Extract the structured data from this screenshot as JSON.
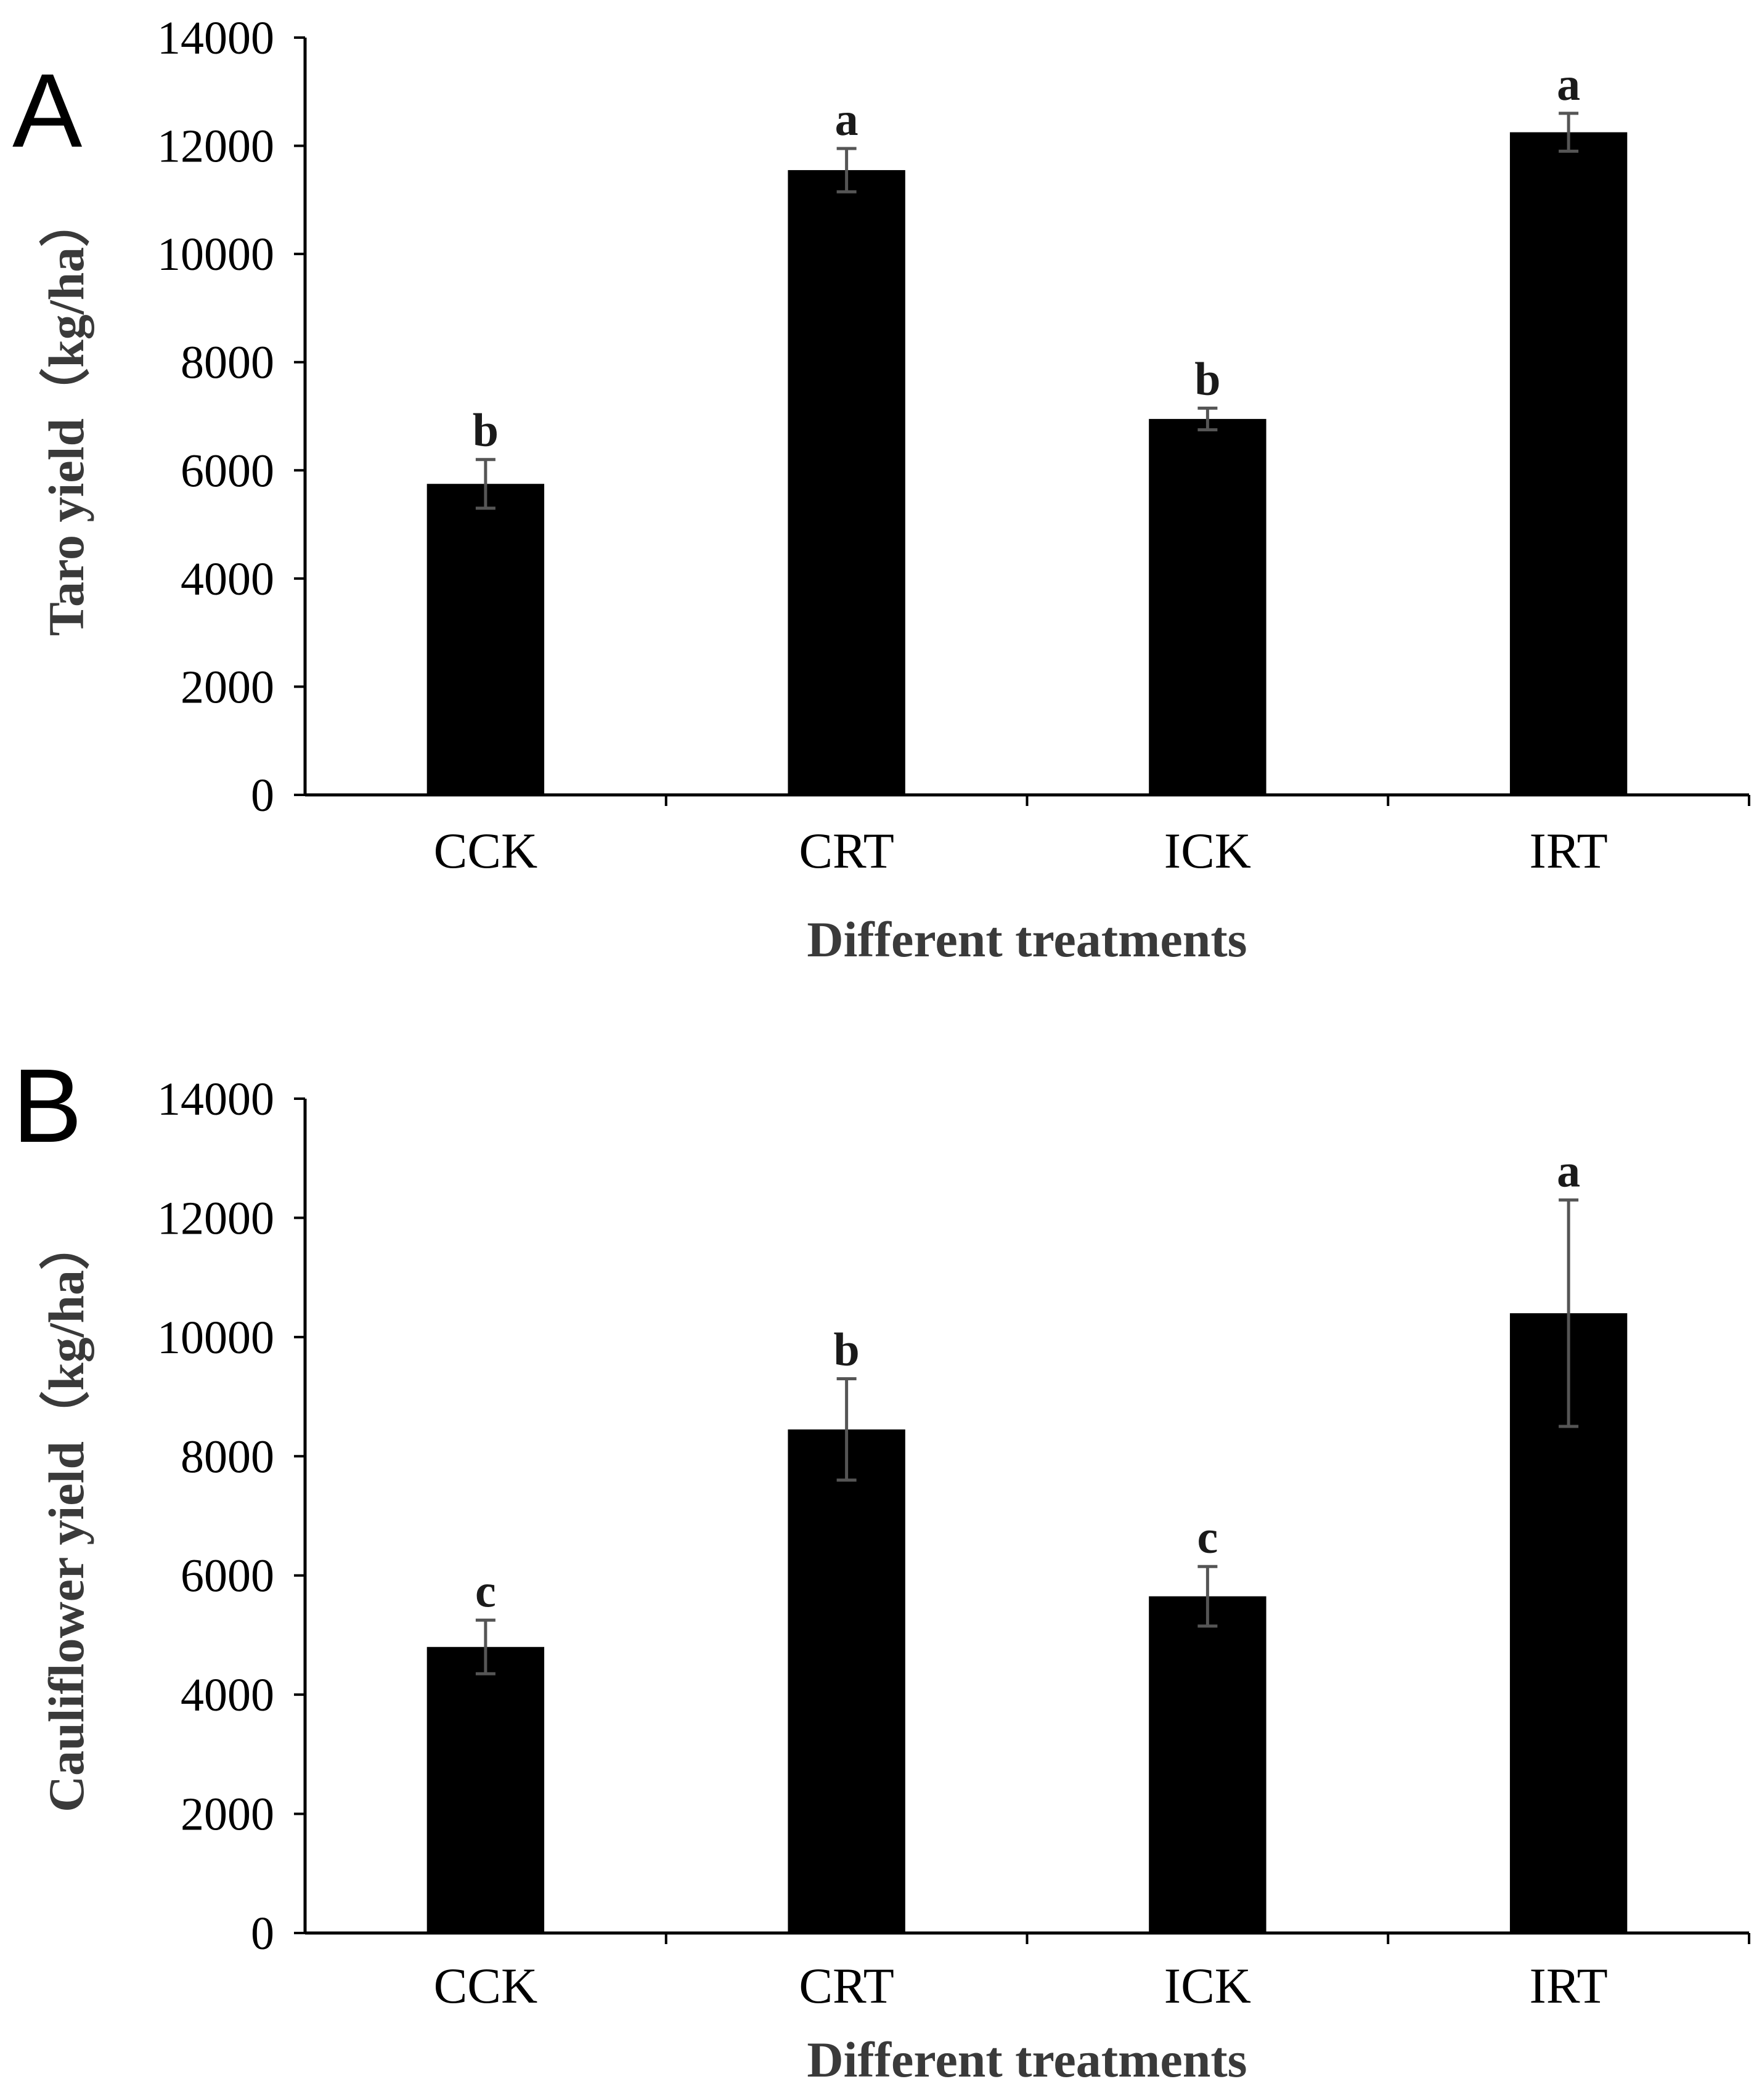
{
  "chart_data": [
    {
      "type": "bar",
      "panel": "A",
      "categories": [
        "CCK",
        "CRT",
        "ICK",
        "IRT"
      ],
      "values": [
        5750,
        11550,
        6950,
        12250
      ],
      "errors": [
        450,
        400,
        200,
        350
      ],
      "significance": [
        "b",
        "a",
        "b",
        "a"
      ],
      "xlabel": "Different treatments",
      "ylabel": "Taro yield（kg/ha）",
      "ylim": [
        0,
        14000
      ],
      "yticks": [
        0,
        2000,
        4000,
        6000,
        8000,
        10000,
        12000,
        14000
      ],
      "ytick_labels": [
        "0",
        "2000",
        "4000",
        "6000",
        "8000",
        "10000",
        "12000",
        "14000"
      ],
      "bar_color": "#000000",
      "grid": false
    },
    {
      "type": "bar",
      "panel": "B",
      "categories": [
        "CCK",
        "CRT",
        "ICK",
        "IRT"
      ],
      "values": [
        4800,
        8450,
        5650,
        10400
      ],
      "errors": [
        450,
        850,
        500,
        1900
      ],
      "significance": [
        "c",
        "b",
        "c",
        "a"
      ],
      "xlabel": "Different treatments",
      "ylabel": "Cauliflower yield（kg/ha）",
      "ylim": [
        0,
        14000
      ],
      "yticks": [
        0,
        2000,
        4000,
        6000,
        8000,
        10000,
        12000,
        14000
      ],
      "ytick_labels": [
        "0",
        "2000",
        "4000",
        "6000",
        "8000",
        "10000",
        "12000",
        "14000"
      ],
      "bar_color": "#000000",
      "grid": false
    }
  ]
}
